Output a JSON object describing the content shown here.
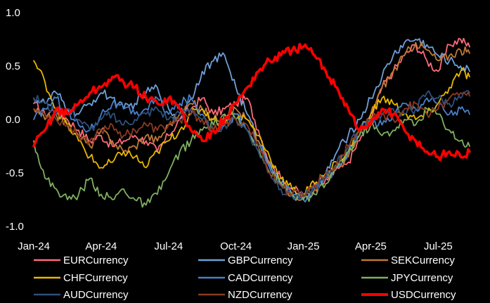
{
  "chart_data": {
    "type": "line",
    "title": "",
    "xlabel": "",
    "ylabel": "",
    "ylim": [
      -1.0,
      1.0
    ],
    "grid": false,
    "legend_position": "bottom",
    "y_ticks": [
      "1.0",
      "0.5",
      "0.0",
      "-0.5",
      "-1.0"
    ],
    "y_tick_values": [
      1.0,
      0.5,
      0.0,
      -0.5,
      -1.0
    ],
    "x_ticks": [
      "Jan-24",
      "Apr-24",
      "Jul-24",
      "Oct-24",
      "Jan-25",
      "Apr-25",
      "Jul-25"
    ],
    "x_tick_months": [
      0,
      3,
      6,
      9,
      12,
      15,
      18
    ],
    "x_range_months": [
      0,
      19.4
    ],
    "x_months": [
      0,
      0.5,
      1,
      1.5,
      2,
      2.5,
      3,
      3.5,
      4,
      4.5,
      5,
      5.5,
      6,
      6.5,
      7,
      7.5,
      8,
      8.5,
      9,
      9.5,
      10,
      10.5,
      11,
      11.5,
      12,
      12.5,
      13,
      13.5,
      14,
      14.5,
      15,
      15.5,
      16,
      16.5,
      17,
      17.5,
      18,
      18.5,
      19,
      19.4
    ],
    "series": [
      {
        "name": "EURCurrency",
        "color": "#ff6b7a",
        "width": 1.8,
        "values": [
          0.15,
          0.05,
          0.1,
          0.0,
          -0.1,
          -0.2,
          -0.15,
          -0.25,
          -0.2,
          -0.15,
          -0.2,
          -0.3,
          -0.15,
          0.0,
          0.1,
          0.2,
          0.05,
          0.1,
          0.15,
          0.2,
          -0.1,
          -0.4,
          -0.55,
          -0.65,
          -0.7,
          -0.6,
          -0.55,
          -0.45,
          -0.4,
          -0.2,
          0.0,
          0.3,
          0.45,
          0.6,
          0.7,
          0.55,
          0.45,
          0.7,
          0.75,
          0.68
        ]
      },
      {
        "name": "GBPCurrency",
        "color": "#6f9fd8",
        "width": 1.8,
        "values": [
          0.2,
          0.15,
          0.25,
          0.1,
          0.05,
          0.15,
          0.25,
          0.2,
          0.1,
          0.15,
          0.25,
          0.3,
          0.1,
          0.0,
          0.2,
          0.45,
          0.55,
          0.6,
          0.3,
          0.05,
          -0.2,
          -0.4,
          -0.6,
          -0.7,
          -0.75,
          -0.65,
          -0.5,
          -0.3,
          -0.15,
          0.0,
          0.2,
          0.4,
          0.6,
          0.72,
          0.75,
          0.7,
          0.6,
          0.55,
          0.5,
          0.45
        ]
      },
      {
        "name": "SEKCurrency",
        "color": "#c07838",
        "width": 1.8,
        "values": [
          0.1,
          0.0,
          0.05,
          -0.05,
          -0.15,
          -0.25,
          -0.1,
          -0.2,
          -0.3,
          -0.25,
          -0.15,
          -0.2,
          -0.05,
          0.05,
          0.15,
          0.1,
          0.0,
          0.05,
          0.1,
          0.0,
          -0.2,
          -0.45,
          -0.6,
          -0.7,
          -0.72,
          -0.65,
          -0.55,
          -0.45,
          -0.35,
          -0.15,
          0.05,
          0.3,
          0.45,
          0.6,
          0.72,
          0.65,
          0.55,
          0.6,
          0.65,
          0.62
        ]
      },
      {
        "name": "CHFCurrency",
        "color": "#e8b800",
        "width": 1.8,
        "values": [
          0.55,
          0.35,
          0.1,
          -0.05,
          -0.2,
          -0.35,
          -0.45,
          -0.4,
          -0.3,
          -0.35,
          -0.45,
          -0.3,
          -0.2,
          -0.1,
          0.05,
          0.1,
          0.0,
          -0.05,
          0.05,
          0.0,
          -0.15,
          -0.35,
          -0.55,
          -0.65,
          -0.7,
          -0.6,
          -0.5,
          -0.4,
          -0.3,
          -0.1,
          0.05,
          0.2,
          0.15,
          0.05,
          0.0,
          0.05,
          0.15,
          0.3,
          0.45,
          0.4
        ]
      },
      {
        "name": "CADCurrency",
        "color": "#4a7fc8",
        "width": 1.8,
        "values": [
          0.0,
          0.1,
          0.2,
          0.05,
          -0.05,
          -0.1,
          0.05,
          0.15,
          0.1,
          0.05,
          0.1,
          0.2,
          0.05,
          0.15,
          0.2,
          0.05,
          -0.1,
          -0.05,
          0.05,
          -0.1,
          -0.25,
          -0.45,
          -0.6,
          -0.7,
          -0.75,
          -0.65,
          -0.55,
          -0.45,
          -0.3,
          -0.1,
          0.0,
          -0.05,
          0.05,
          0.15,
          0.1,
          0.2,
          0.15,
          0.05,
          0.1,
          0.05
        ]
      },
      {
        "name": "JPYCurrency",
        "color": "#7fb060",
        "width": 1.8,
        "values": [
          -0.2,
          -0.55,
          -0.65,
          -0.75,
          -0.7,
          -0.55,
          -0.7,
          -0.75,
          -0.65,
          -0.75,
          -0.8,
          -0.7,
          -0.5,
          -0.3,
          -0.2,
          -0.1,
          -0.05,
          0.05,
          0.0,
          -0.1,
          -0.25,
          -0.5,
          -0.6,
          -0.7,
          -0.75,
          -0.7,
          -0.6,
          -0.45,
          -0.3,
          -0.15,
          -0.05,
          -0.15,
          -0.1,
          0.0,
          -0.05,
          0.1,
          0.05,
          -0.1,
          -0.2,
          -0.25
        ]
      },
      {
        "name": "AUDCurrency",
        "color": "#2e4f7c",
        "width": 1.8,
        "values": [
          0.2,
          0.15,
          0.05,
          0.1,
          0.0,
          -0.1,
          0.0,
          0.05,
          -0.05,
          0.0,
          0.05,
          0.1,
          0.0,
          0.05,
          0.1,
          0.0,
          -0.1,
          -0.05,
          0.0,
          -0.1,
          -0.3,
          -0.5,
          -0.65,
          -0.72,
          -0.72,
          -0.65,
          -0.55,
          -0.4,
          -0.25,
          -0.1,
          0.0,
          0.05,
          0.1,
          0.05,
          0.1,
          0.25,
          0.2,
          0.15,
          0.2,
          0.25
        ]
      },
      {
        "name": "NZDCurrency",
        "color": "#8a3a22",
        "width": 1.8,
        "values": [
          0.1,
          0.05,
          0.0,
          -0.05,
          -0.15,
          -0.2,
          -0.1,
          -0.05,
          -0.15,
          -0.1,
          -0.05,
          -0.1,
          -0.05,
          0.0,
          0.05,
          0.0,
          -0.1,
          -0.05,
          0.0,
          -0.05,
          -0.25,
          -0.5,
          -0.62,
          -0.7,
          -0.7,
          -0.62,
          -0.5,
          -0.4,
          -0.25,
          -0.1,
          0.0,
          0.05,
          0.0,
          0.1,
          0.15,
          0.05,
          0.1,
          0.2,
          0.25,
          0.22
        ]
      },
      {
        "name": "USDCurrency",
        "color": "#ff0000",
        "width": 3.5,
        "values": [
          -0.25,
          -0.1,
          0.1,
          0.05,
          0.15,
          0.25,
          0.3,
          0.4,
          0.35,
          0.3,
          0.2,
          0.15,
          0.2,
          0.1,
          -0.1,
          -0.2,
          -0.1,
          0.0,
          0.15,
          0.3,
          0.45,
          0.55,
          0.6,
          0.65,
          0.68,
          0.6,
          0.45,
          0.3,
          0.1,
          -0.1,
          -0.05,
          0.1,
          0.05,
          -0.1,
          -0.2,
          -0.3,
          -0.35,
          -0.3,
          -0.35,
          -0.3
        ]
      }
    ]
  }
}
